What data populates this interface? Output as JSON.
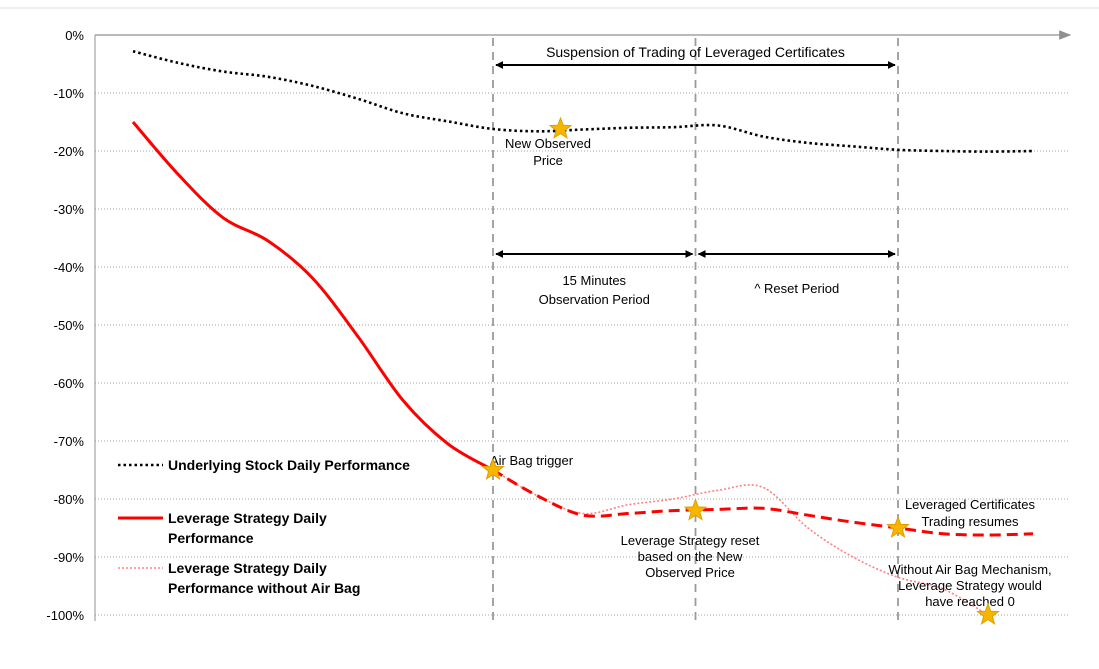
{
  "chart_data": {
    "type": "line",
    "title": "",
    "xlabel": "",
    "ylabel": "",
    "ylim": [
      -100,
      0
    ],
    "y_ticks": [
      "0%",
      "-10%",
      "-20%",
      "-30%",
      "-40%",
      "-50%",
      "-60%",
      "-70%",
      "-80%",
      "-90%",
      "-100%"
    ],
    "grid": "horizontal dotted",
    "x": [
      0,
      1,
      2,
      3,
      4,
      5,
      6,
      7,
      8,
      9,
      10,
      11,
      12,
      13,
      14,
      15,
      16,
      17,
      18,
      19,
      20
    ],
    "series": [
      {
        "name": "Underlying Stock Daily Performance",
        "style": "dotted",
        "color": "#000000",
        "values": [
          -2.8,
          -4.8,
          -6.3,
          -7.2,
          -8.8,
          -11.0,
          -13.5,
          -14.9,
          -16.2,
          -16.6,
          -16.3,
          -16.0,
          -15.9,
          -15.6,
          -17.5,
          -18.6,
          -19.2,
          -19.8,
          -20.0,
          -20.1,
          -20.0
        ]
      },
      {
        "name": "Leverage Strategy Daily Performance",
        "style": "solid then dashed after Air Bag trigger",
        "color": "#ff0000",
        "values": [
          -15.0,
          -24.0,
          -31.5,
          -35.5,
          -42.0,
          -52.0,
          -63.0,
          -70.5,
          -75.0,
          -79.5,
          -82.8,
          -82.5,
          -82.0,
          -81.8,
          -81.6,
          -82.8,
          -84.0,
          -85.0,
          -86.0,
          -86.2,
          -86.0
        ]
      },
      {
        "name": "Leverage Strategy Daily Performance without Air Bag",
        "style": "dotted",
        "color": "#ff8080",
        "values": [
          null,
          null,
          null,
          null,
          null,
          null,
          null,
          null,
          -75.0,
          -79.5,
          -82.5,
          -81.0,
          -80.0,
          -78.5,
          -78.0,
          -85.0,
          -90.0,
          -93.5,
          -95.5,
          -100.0,
          null
        ]
      }
    ],
    "markers": [
      {
        "label": "New Observed Price",
        "x": 9.5,
        "y": -16.2
      },
      {
        "label": "Air Bag trigger",
        "x": 8.0,
        "y": -75.0
      },
      {
        "label": "Leverage Strategy reset based on the New Observed Price",
        "x": 12.5,
        "y": -82.0
      },
      {
        "label": "Leveraged Certificates Trading resumes",
        "x": 17.0,
        "y": -85.0
      },
      {
        "label": "Without Air Bag Mechanism, Leverage Strategy would have reached 0",
        "x": 19.0,
        "y": -100.0
      }
    ],
    "vertical_lines_x": [
      8.0,
      12.5,
      17.0
    ],
    "annotations": {
      "suspension": "Suspension of  Trading of Leveraged Certificates",
      "observation": [
        "15 Minutes",
        "Observation Period"
      ],
      "reset": "^ Reset Period",
      "new_price": [
        "New Observed",
        "Price"
      ],
      "air_bag": "Air Bag trigger",
      "reset_note": [
        "Leverage Strategy reset",
        "based on the New",
        "Observed Price"
      ],
      "resumes": [
        "Leveraged Certificates",
        "Trading resumes"
      ],
      "without": [
        "Without Air Bag Mechanism,",
        "Leverage Strategy would",
        "have reached 0"
      ]
    },
    "legend": {
      "placement": "bottom-left",
      "items": [
        {
          "lines": [
            "Underlying Stock Daily Performance"
          ],
          "style": "dotted",
          "color": "#000000"
        },
        {
          "lines": [
            "Leverage Strategy Daily",
            "Performance"
          ],
          "style": "solid",
          "color": "#ff0000"
        },
        {
          "lines": [
            "Leverage Strategy Daily",
            "Performance without Air Bag"
          ],
          "style": "dotted",
          "color": "#ff8080"
        }
      ]
    },
    "colors": {
      "star": "#f7b500",
      "star_stroke": "#e0a000",
      "vline": "#9a9a9a",
      "axis": "#909090",
      "grid": "#888888"
    }
  }
}
